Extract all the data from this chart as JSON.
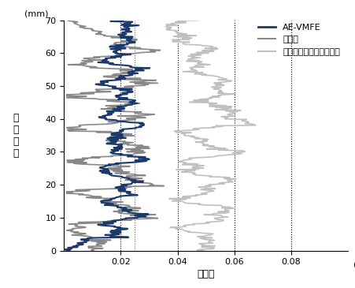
{
  "xlim": [
    0,
    0.1
  ],
  "ylim": [
    0,
    70
  ],
  "yticks": [
    0,
    10,
    20,
    30,
    40,
    50,
    60,
    70
  ],
  "xticks": [
    0.02,
    0.04,
    0.06,
    0.08
  ],
  "xtick_labels": [
    "0.02",
    "0.04",
    "0.06",
    "0.08"
  ],
  "vlines_dotted": [
    0.02,
    0.04,
    0.06,
    0.08
  ],
  "vline_dotted2": 0.025,
  "ae_vmfe_color": "#1b3a6b",
  "juurai_color": "#888888",
  "juurai_extra_color": "#c0c0c0",
  "legend_labels": [
    "AE-VMFE",
    "従来品",
    "従来エキストラロング形"
  ],
  "xlabel": "倒れ量",
  "ylabel_line1": "加",
  "ylabel_line2": "工",
  "ylabel_line3": "深",
  "ylabel_line4": "さ",
  "ylabel_mm": "(mm)",
  "xlabel_mm": "(mm)",
  "background_color": "#ffffff"
}
